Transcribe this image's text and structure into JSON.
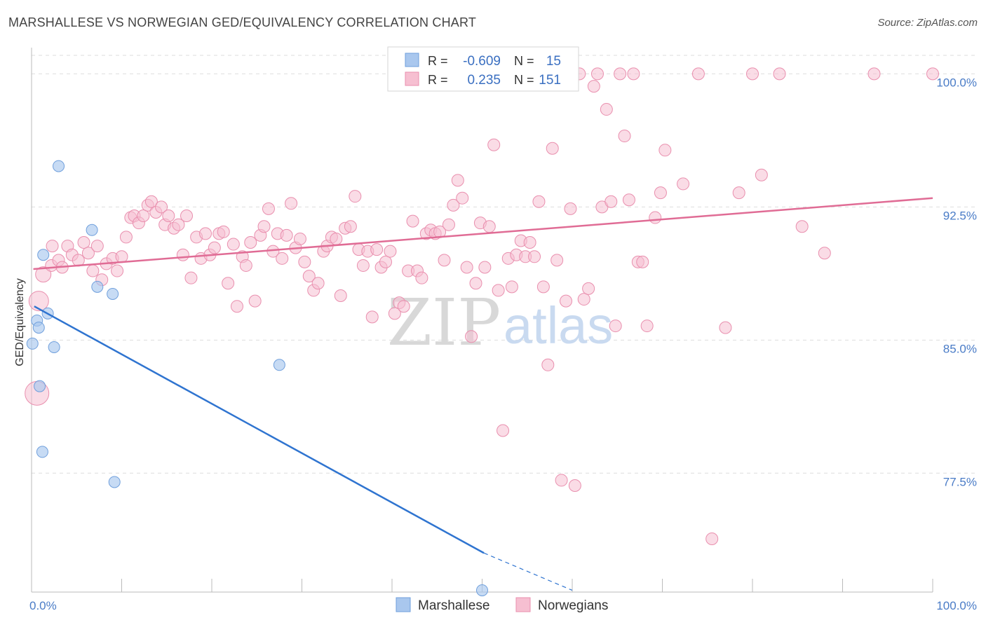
{
  "title": "MARSHALLESE VS NORWEGIAN GED/EQUIVALENCY CORRELATION CHART",
  "source": "Source: ZipAtlas.com",
  "watermark": {
    "zip": "ZIP",
    "atlas": "atlas"
  },
  "colors": {
    "marshallese_fill": "#a9c7ee",
    "marshallese_stroke": "#6f9fdc",
    "marshallese_line": "#2f74d0",
    "norwegian_fill": "#f6bfd1",
    "norwegian_stroke": "#e98fae",
    "norwegian_line": "#e06c95",
    "tick_label": "#4a7cc7",
    "grid": "#dddddd"
  },
  "legend": {
    "rows": [
      {
        "r_label": "R =",
        "r_value": "-0.609",
        "n_label": "N =",
        "n_value": "15"
      },
      {
        "r_label": "R =",
        "r_value": "0.235",
        "n_label": "N =",
        "n_value": "151"
      }
    ]
  },
  "bottom_legend": {
    "items": [
      "Marshallese",
      "Norwegians"
    ]
  },
  "chart_data": {
    "type": "scatter",
    "ylabel": "GED/Equivalency",
    "xlim": [
      0,
      100
    ],
    "ylim": [
      70.8,
      101.2
    ],
    "x_tick_labels": [
      "0.0%",
      "100.0%"
    ],
    "y_ticks": [
      77.5,
      85.0,
      92.5,
      100.0
    ],
    "y_tick_labels": [
      "77.5%",
      "85.0%",
      "92.5%",
      "100.0%"
    ],
    "grid": "horizontal dashed",
    "legend_placement": "top-center",
    "series": [
      {
        "name": "Marshallese",
        "r": -0.609,
        "n": 15,
        "trend": {
          "x": [
            0.3,
            50.2
          ],
          "y": [
            86.9,
            73.0
          ],
          "dashed_to": [
            60.0,
            70.9
          ]
        },
        "points": [
          [
            3.0,
            94.8
          ],
          [
            0.6,
            86.1
          ],
          [
            1.8,
            86.5
          ],
          [
            0.8,
            85.7
          ],
          [
            0.1,
            84.8
          ],
          [
            2.5,
            84.6
          ],
          [
            1.3,
            89.8
          ],
          [
            6.7,
            91.2
          ],
          [
            7.3,
            88.0
          ],
          [
            9.0,
            87.6
          ],
          [
            0.9,
            82.4
          ],
          [
            1.2,
            78.7
          ],
          [
            9.2,
            77.0
          ],
          [
            27.5,
            83.6
          ],
          [
            50.0,
            70.9
          ]
        ]
      },
      {
        "name": "Norwegians",
        "r": 0.235,
        "n": 151,
        "trend": {
          "x": [
            0.2,
            100.0
          ],
          "y": [
            89.0,
            93.0
          ]
        },
        "points": [
          [
            0.6,
            82.0
          ],
          [
            0.8,
            87.2
          ],
          [
            1.3,
            88.7
          ],
          [
            2.2,
            89.2
          ],
          [
            2.3,
            90.3
          ],
          [
            3.0,
            89.5
          ],
          [
            3.4,
            89.1
          ],
          [
            4.0,
            90.3
          ],
          [
            4.5,
            89.8
          ],
          [
            5.2,
            89.5
          ],
          [
            5.8,
            90.5
          ],
          [
            6.3,
            89.9
          ],
          [
            6.8,
            88.9
          ],
          [
            7.3,
            90.3
          ],
          [
            7.8,
            88.4
          ],
          [
            8.3,
            89.3
          ],
          [
            9.0,
            89.6
          ],
          [
            9.5,
            88.9
          ],
          [
            10.0,
            89.7
          ],
          [
            10.5,
            90.8
          ],
          [
            11.0,
            91.9
          ],
          [
            11.4,
            92.0
          ],
          [
            11.9,
            91.6
          ],
          [
            12.4,
            92.0
          ],
          [
            12.9,
            92.6
          ],
          [
            13.3,
            92.8
          ],
          [
            13.8,
            92.2
          ],
          [
            14.4,
            92.5
          ],
          [
            14.8,
            91.5
          ],
          [
            15.2,
            92.0
          ],
          [
            15.8,
            91.3
          ],
          [
            16.3,
            91.5
          ],
          [
            16.8,
            89.8
          ],
          [
            17.2,
            92.0
          ],
          [
            17.7,
            88.5
          ],
          [
            18.3,
            90.8
          ],
          [
            18.8,
            89.6
          ],
          [
            19.3,
            91.0
          ],
          [
            19.8,
            89.8
          ],
          [
            20.3,
            90.2
          ],
          [
            20.8,
            91.0
          ],
          [
            21.3,
            91.1
          ],
          [
            21.8,
            88.2
          ],
          [
            22.4,
            90.4
          ],
          [
            22.8,
            86.9
          ],
          [
            23.4,
            89.7
          ],
          [
            23.8,
            89.2
          ],
          [
            24.3,
            90.5
          ],
          [
            24.8,
            87.2
          ],
          [
            25.4,
            90.9
          ],
          [
            25.8,
            91.4
          ],
          [
            26.3,
            92.4
          ],
          [
            26.8,
            90.0
          ],
          [
            27.3,
            91.0
          ],
          [
            27.8,
            89.6
          ],
          [
            28.3,
            90.9
          ],
          [
            28.8,
            92.7
          ],
          [
            29.3,
            90.2
          ],
          [
            29.8,
            90.7
          ],
          [
            30.3,
            89.4
          ],
          [
            30.8,
            88.6
          ],
          [
            31.3,
            87.8
          ],
          [
            31.8,
            88.2
          ],
          [
            32.4,
            90.0
          ],
          [
            32.8,
            90.3
          ],
          [
            33.3,
            90.8
          ],
          [
            33.8,
            90.7
          ],
          [
            34.3,
            87.5
          ],
          [
            34.8,
            91.3
          ],
          [
            35.4,
            91.4
          ],
          [
            35.9,
            93.1
          ],
          [
            36.3,
            90.1
          ],
          [
            36.8,
            89.2
          ],
          [
            37.3,
            90.0
          ],
          [
            37.8,
            86.3
          ],
          [
            38.3,
            90.1
          ],
          [
            38.8,
            89.1
          ],
          [
            39.3,
            89.4
          ],
          [
            39.8,
            90.0
          ],
          [
            40.3,
            86.5
          ],
          [
            40.8,
            87.1
          ],
          [
            41.3,
            86.9
          ],
          [
            41.8,
            88.9
          ],
          [
            42.3,
            91.7
          ],
          [
            42.8,
            88.9
          ],
          [
            43.3,
            88.5
          ],
          [
            43.8,
            91.0
          ],
          [
            44.3,
            91.2
          ],
          [
            44.8,
            91.0
          ],
          [
            45.3,
            91.1
          ],
          [
            45.8,
            89.5
          ],
          [
            46.3,
            91.5
          ],
          [
            46.8,
            92.6
          ],
          [
            47.3,
            94.0
          ],
          [
            47.8,
            93.0
          ],
          [
            48.3,
            89.1
          ],
          [
            48.8,
            85.2
          ],
          [
            49.3,
            88.2
          ],
          [
            49.8,
            91.6
          ],
          [
            50.3,
            89.1
          ],
          [
            50.8,
            91.4
          ],
          [
            51.3,
            96.0
          ],
          [
            51.8,
            87.8
          ],
          [
            52.3,
            79.9
          ],
          [
            52.9,
            89.6
          ],
          [
            53.3,
            88.0
          ],
          [
            53.8,
            89.8
          ],
          [
            54.3,
            90.6
          ],
          [
            54.8,
            89.7
          ],
          [
            55.3,
            90.5
          ],
          [
            55.8,
            89.7
          ],
          [
            56.3,
            92.8
          ],
          [
            56.8,
            88.0
          ],
          [
            57.3,
            83.6
          ],
          [
            57.8,
            95.8
          ],
          [
            58.3,
            89.5
          ],
          [
            58.8,
            77.1
          ],
          [
            59.3,
            87.2
          ],
          [
            59.8,
            92.4
          ],
          [
            60.3,
            76.8
          ],
          [
            60.8,
            100.0
          ],
          [
            61.3,
            87.3
          ],
          [
            61.8,
            87.9
          ],
          [
            62.4,
            99.3
          ],
          [
            62.8,
            100.0
          ],
          [
            63.3,
            92.5
          ],
          [
            63.8,
            98.0
          ],
          [
            64.3,
            92.8
          ],
          [
            64.8,
            85.8
          ],
          [
            65.3,
            100.0
          ],
          [
            65.8,
            96.5
          ],
          [
            66.3,
            92.9
          ],
          [
            66.8,
            100.0
          ],
          [
            67.3,
            89.4
          ],
          [
            67.8,
            89.4
          ],
          [
            68.3,
            85.8
          ],
          [
            69.2,
            91.9
          ],
          [
            69.8,
            93.3
          ],
          [
            70.3,
            95.7
          ],
          [
            72.3,
            93.8
          ],
          [
            74.0,
            100.0
          ],
          [
            75.5,
            73.8
          ],
          [
            77.0,
            85.7
          ],
          [
            78.5,
            93.3
          ],
          [
            80.0,
            100.0
          ],
          [
            81.0,
            94.3
          ],
          [
            83.0,
            100.0
          ],
          [
            85.5,
            91.4
          ],
          [
            88.0,
            89.9
          ],
          [
            93.5,
            100.0
          ],
          [
            100.0,
            100.0
          ]
        ]
      }
    ]
  }
}
